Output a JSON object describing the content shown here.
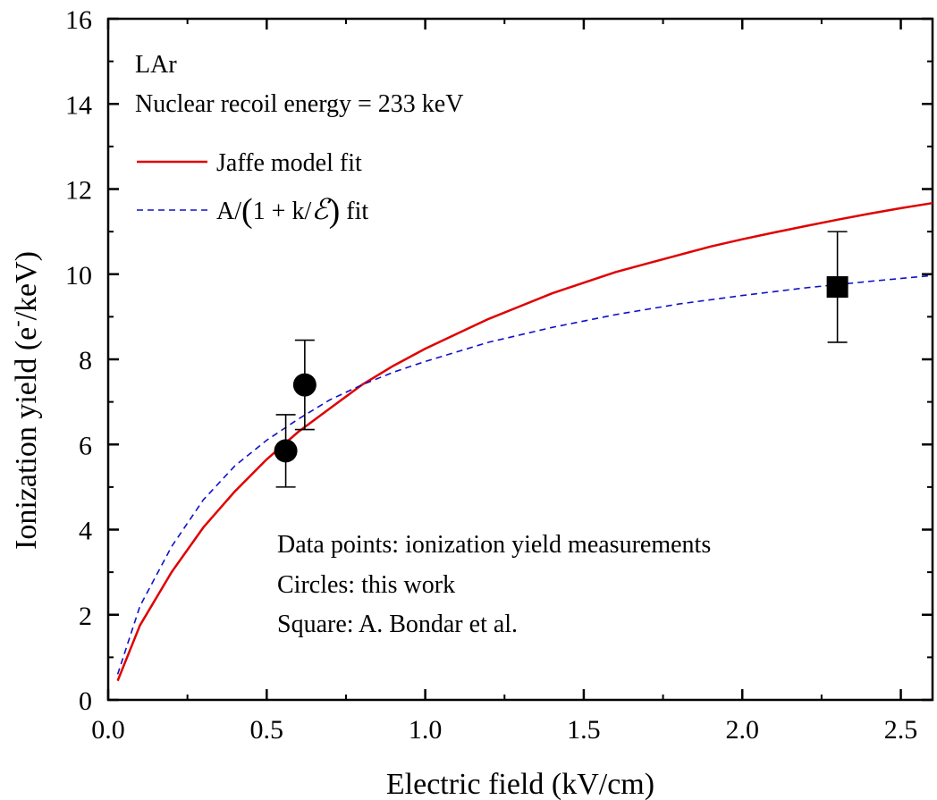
{
  "chart_data": {
    "type": "line",
    "xlabel": "Electric field (kV/cm)",
    "ylabel_main": "Ionization yield (e",
    "ylabel_sup": "-",
    "ylabel_tail": "/keV)",
    "xlim": [
      0.0,
      2.6
    ],
    "ylim": [
      0,
      16
    ],
    "x_ticks": [
      0.0,
      0.5,
      1.0,
      1.5,
      2.0,
      2.5
    ],
    "x_tick_labels": [
      "0.0",
      "0.5",
      "1.0",
      "1.5",
      "2.0",
      "2.5"
    ],
    "y_ticks": [
      0,
      2,
      4,
      6,
      8,
      10,
      12,
      14,
      16
    ],
    "y_tick_labels": [
      "0",
      "2",
      "4",
      "6",
      "8",
      "10",
      "12",
      "14",
      "16"
    ],
    "grid": false,
    "legend_position": "top-left",
    "annotations_top": [
      "LAr",
      "Nuclear recoil energy = 233 keV"
    ],
    "annotations_bottom": [
      "Data points: ionization yield measurements",
      "Circles: this work",
      "Square: A. Bondar et al."
    ],
    "series": [
      {
        "name": "Jaffe model fit",
        "style": "solid",
        "color": "#e00000",
        "x": [
          0.03,
          0.1,
          0.2,
          0.3,
          0.4,
          0.5,
          0.6,
          0.7,
          0.8,
          0.9,
          1.0,
          1.1,
          1.2,
          1.3,
          1.4,
          1.5,
          1.6,
          1.7,
          1.8,
          1.9,
          2.0,
          2.1,
          2.2,
          2.3,
          2.4,
          2.5,
          2.6
        ],
        "y": [
          0.45,
          1.75,
          3.0,
          4.05,
          4.9,
          5.65,
          6.3,
          6.85,
          7.4,
          7.85,
          8.25,
          8.6,
          8.95,
          9.25,
          9.55,
          9.8,
          10.05,
          10.25,
          10.45,
          10.65,
          10.82,
          10.98,
          11.13,
          11.28,
          11.42,
          11.55,
          11.67
        ]
      },
      {
        "name": "A/(1 + k/ℰ) fit",
        "legend_parts": [
          "A/",
          "(",
          "1 + k/",
          "ℰ",
          ")",
          " fit"
        ],
        "style": "dashed",
        "color": "#1010c8",
        "x": [
          0.03,
          0.1,
          0.2,
          0.3,
          0.4,
          0.5,
          0.6,
          0.7,
          0.8,
          0.9,
          1.0,
          1.2,
          1.4,
          1.6,
          1.8,
          2.0,
          2.2,
          2.4,
          2.6
        ],
        "y": [
          0.6,
          2.2,
          3.6,
          4.7,
          5.5,
          6.1,
          6.6,
          7.05,
          7.4,
          7.7,
          7.95,
          8.4,
          8.75,
          9.05,
          9.3,
          9.5,
          9.68,
          9.83,
          9.97
        ]
      }
    ],
    "points": [
      {
        "label": "this work",
        "marker": "circle",
        "x": 0.56,
        "y": 5.85,
        "err_low": 5.0,
        "err_high": 6.7
      },
      {
        "label": "this work",
        "marker": "circle",
        "x": 0.62,
        "y": 7.4,
        "err_low": 6.35,
        "err_high": 8.45
      },
      {
        "label": "A. Bondar et al.",
        "marker": "square",
        "x": 2.3,
        "y": 9.7,
        "err_low": 8.4,
        "err_high": 11.0
      }
    ]
  }
}
